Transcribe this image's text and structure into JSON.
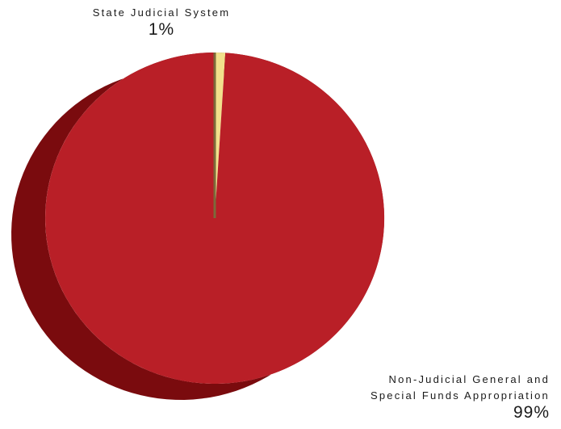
{
  "chart_data": {
    "type": "pie",
    "title": "",
    "slices": [
      {
        "label_lines": [
          "State Judicial System"
        ],
        "value": 1,
        "value_label": "1%",
        "color": "#F2E08C",
        "side_color": "#8C7A45"
      },
      {
        "label_lines": [
          "Non-Judicial General and",
          "Special Funds Appropriation"
        ],
        "value": 99,
        "value_label": "99%",
        "color": "#B91F27",
        "side_color": "#7A0B0E"
      }
    ],
    "style": "3d",
    "legend": "none"
  }
}
